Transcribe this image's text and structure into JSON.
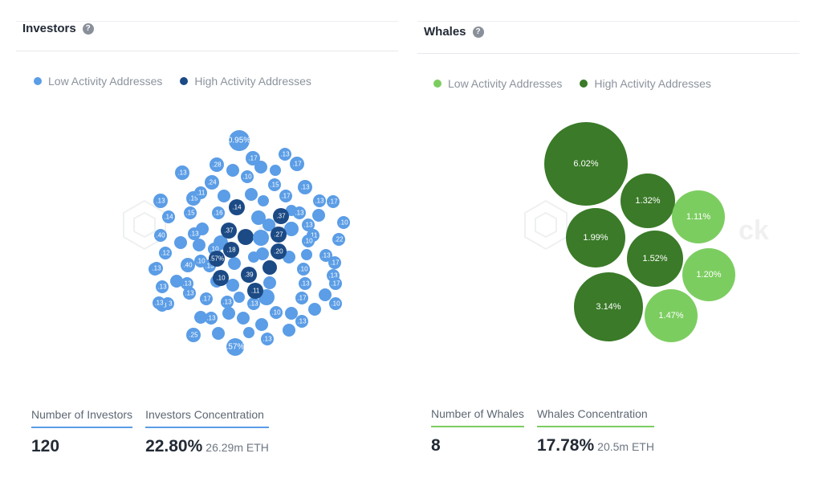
{
  "colors": {
    "investors_low": "#5b9de6",
    "investors_high": "#1b4a85",
    "whales_low": "#7ccd60",
    "whales_high": "#3a7a28"
  },
  "investors": {
    "title": "Investors",
    "help_icon": "question-circle-icon",
    "legend": [
      {
        "label": "Low Activity Addresses"
      },
      {
        "label": "High Activity Addresses"
      }
    ],
    "stats": {
      "count_label": "Number of Investors",
      "count_value": "120",
      "concentration_label": "Investors Concentration",
      "concentration_value": "22.80%",
      "concentration_sub": "26.29m ETH"
    }
  },
  "whales": {
    "title": "Whales",
    "help_icon": "question-circle-icon",
    "legend": [
      {
        "label": "Low Activity Addresses"
      },
      {
        "label": "High Activity Addresses"
      }
    ],
    "stats": {
      "count_label": "Number of Whales",
      "count_value": "8",
      "concentration_label": "Whales Concentration",
      "concentration_value": "17.78%",
      "concentration_sub": "20.5m ETH"
    }
  },
  "chart_data": [
    {
      "type": "bubble",
      "series": [
        {
          "name": "Low Activity Addresses",
          "labels": [
            "0.95%",
            ".17",
            ".13",
            ".28",
            ".10",
            ".17",
            ".13",
            ".24",
            ".15",
            ".13",
            ".13",
            ".11",
            ".15",
            ".17",
            ".13",
            ".14",
            ".15",
            ".16",
            ".13",
            ".17",
            ".40",
            ".13",
            ".13",
            ".11",
            ".10",
            ".12",
            ".10",
            ".22",
            ".22",
            ".10",
            ".13",
            ".40",
            ".13",
            ".13",
            ".17",
            ".13",
            ".10",
            ".13",
            ".13",
            ".13",
            ".17",
            ".13",
            ".13",
            ".10",
            ".13",
            ".17",
            ".13",
            ".10",
            ".17",
            ".13",
            ".13",
            ".13",
            ".25",
            ".10",
            ".13",
            ".57%",
            ".13"
          ]
        },
        {
          "name": "High Activity Addresses",
          "labels": [
            ".14",
            ".37",
            ".37",
            ".27",
            ".18",
            ".57%",
            ".20",
            ".10",
            ".39",
            ".11"
          ]
        }
      ]
    },
    {
      "type": "bubble",
      "series": [
        {
          "name": "Low Activity Addresses",
          "labels": [
            "1.11%",
            "1.20%",
            "1.47%"
          ],
          "values": [
            1.11,
            1.2,
            1.47
          ]
        },
        {
          "name": "High Activity Addresses",
          "labels": [
            "6.02%",
            "1.32%",
            "1.99%",
            "1.52%",
            "3.14%"
          ],
          "values": [
            6.02,
            1.32,
            1.99,
            1.52,
            3.14
          ]
        }
      ]
    }
  ]
}
